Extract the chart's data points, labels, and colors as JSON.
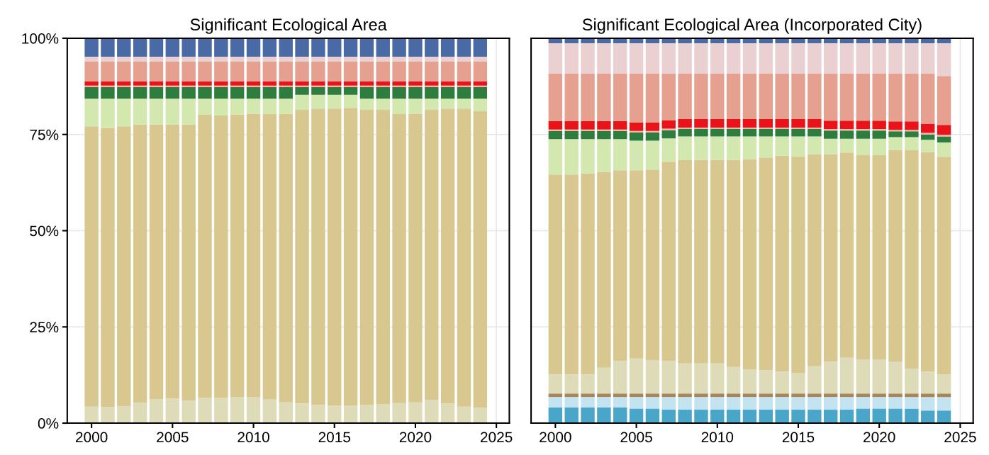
{
  "chart_data": [
    {
      "type": "bar",
      "title": "Significant Ecological Area",
      "stacked": true,
      "x": [
        2000,
        2001,
        2002,
        2003,
        2004,
        2005,
        2006,
        2007,
        2008,
        2009,
        2010,
        2011,
        2012,
        2013,
        2014,
        2015,
        2016,
        2017,
        2018,
        2019,
        2020,
        2021,
        2022,
        2023,
        2024
      ],
      "xlim": [
        1998.5,
        2025.8
      ],
      "xticks": [
        2000,
        2005,
        2010,
        2015,
        2020,
        2025
      ],
      "ylim": [
        0,
        100
      ],
      "yticks": [
        {
          "value": 0,
          "label": "0%"
        },
        {
          "value": 25,
          "label": "25%"
        },
        {
          "value": 50,
          "label": "50%"
        },
        {
          "value": 75,
          "label": "75%"
        },
        {
          "value": 100,
          "label": "100%"
        }
      ],
      "grid": true,
      "series": [
        {
          "color": "#dedbb8",
          "values": [
            4.3,
            4.2,
            4.4,
            5.3,
            6.2,
            6.4,
            5.9,
            6.6,
            6.6,
            6.8,
            6.8,
            6.2,
            5.4,
            5.1,
            4.7,
            4.5,
            4.6,
            4.8,
            4.9,
            5.2,
            5.4,
            6.0,
            5.1,
            4.3,
            4.0
          ]
        },
        {
          "color": "#d9c790",
          "values": [
            72.8,
            72.5,
            72.7,
            72.3,
            71.4,
            71.2,
            71.7,
            73.5,
            73.3,
            73.4,
            73.6,
            74.1,
            75.0,
            76.3,
            77.0,
            77.2,
            77.3,
            76.6,
            76.5,
            75.1,
            75.0,
            75.4,
            76.6,
            77.4,
            77.0
          ]
        },
        {
          "color": "#d3e8ae",
          "values": [
            7.2,
            7.6,
            7.2,
            6.7,
            6.7,
            6.7,
            6.7,
            4.2,
            4.4,
            4.1,
            3.9,
            4.0,
            3.9,
            3.9,
            3.6,
            3.6,
            3.4,
            2.9,
            2.9,
            4.0,
            3.9,
            2.9,
            2.6,
            2.6,
            3.3
          ]
        },
        {
          "color": "#2e7d3e",
          "values": [
            3.0,
            3.0,
            3.0,
            3.0,
            3.0,
            3.0,
            3.0,
            3.0,
            3.0,
            3.0,
            3.0,
            3.0,
            3.0,
            2.0,
            2.0,
            2.0,
            2.0,
            3.0,
            3.0,
            3.0,
            3.0,
            3.0,
            3.0,
            3.0,
            3.0
          ]
        },
        {
          "color": "#f0b8a8",
          "values": [
            0.4,
            0.4,
            0.4,
            0.4,
            0.4,
            0.4,
            0.4,
            0.4,
            0.4,
            0.4,
            0.4,
            0.4,
            0.4,
            0.4,
            0.4,
            0.4,
            0.4,
            0.4,
            0.4,
            0.4,
            0.4,
            0.4,
            0.4,
            0.4,
            0.4
          ]
        },
        {
          "color": "#e8141a",
          "values": [
            1.1,
            1.1,
            1.1,
            1.1,
            1.1,
            1.1,
            1.1,
            1.1,
            1.1,
            1.1,
            1.1,
            1.1,
            1.1,
            1.1,
            1.1,
            1.1,
            1.1,
            1.1,
            1.1,
            1.1,
            1.1,
            1.1,
            1.1,
            1.1,
            1.1
          ]
        },
        {
          "color": "#e5a090",
          "values": [
            5.1,
            5.1,
            5.1,
            5.1,
            5.1,
            5.1,
            5.1,
            5.1,
            5.1,
            5.1,
            5.1,
            5.1,
            5.1,
            5.1,
            5.1,
            5.1,
            5.1,
            5.1,
            5.1,
            5.1,
            5.1,
            5.1,
            5.1,
            5.1,
            5.1
          ]
        },
        {
          "color": "#ead0d0",
          "values": [
            1.3,
            1.3,
            1.3,
            1.3,
            1.3,
            1.3,
            1.3,
            1.3,
            1.3,
            1.3,
            1.3,
            1.3,
            1.3,
            1.3,
            1.3,
            1.3,
            1.3,
            1.3,
            1.3,
            1.3,
            1.3,
            1.3,
            1.3,
            1.3,
            1.3
          ]
        },
        {
          "color": "#4a6aa5",
          "values": [
            4.8,
            4.8,
            4.8,
            4.8,
            4.8,
            4.8,
            4.8,
            4.8,
            4.8,
            4.8,
            4.8,
            4.8,
            4.8,
            4.8,
            4.8,
            4.8,
            4.8,
            4.8,
            4.8,
            4.8,
            4.8,
            4.8,
            4.8,
            4.8,
            4.8
          ]
        }
      ]
    },
    {
      "type": "bar",
      "title": "Significant Ecological Area (Incorporated City)",
      "stacked": true,
      "tick_labels": "x",
      "x": [
        2000,
        2001,
        2002,
        2003,
        2004,
        2005,
        2006,
        2007,
        2008,
        2009,
        2010,
        2011,
        2012,
        2013,
        2014,
        2015,
        2016,
        2017,
        2018,
        2019,
        2020,
        2021,
        2022,
        2023,
        2024
      ],
      "xlim": [
        1998.5,
        2025.8
      ],
      "xticks": [
        2000,
        2005,
        2010,
        2015,
        2020,
        2025
      ],
      "ylim": [
        0,
        100
      ],
      "yticks": [
        0,
        25,
        50,
        75,
        100
      ],
      "grid": true,
      "series": [
        {
          "color": "#4aa6c8",
          "values": [
            4.1,
            4.1,
            4.1,
            4.1,
            4.1,
            3.8,
            3.8,
            3.5,
            3.5,
            3.5,
            3.5,
            3.5,
            3.5,
            3.5,
            3.5,
            3.5,
            3.5,
            3.5,
            3.5,
            3.8,
            3.8,
            3.8,
            3.8,
            3.3,
            3.3
          ]
        },
        {
          "color": "#c4e3f0",
          "values": [
            2.7,
            2.7,
            2.7,
            2.7,
            2.7,
            3.0,
            3.0,
            3.3,
            3.3,
            3.3,
            3.3,
            3.3,
            3.3,
            3.3,
            3.3,
            3.3,
            3.3,
            3.3,
            3.3,
            3.0,
            3.0,
            3.0,
            3.0,
            3.5,
            3.5
          ]
        },
        {
          "color": "#a8865a",
          "values": [
            0.9,
            0.9,
            0.9,
            0.9,
            0.9,
            0.9,
            0.9,
            0.9,
            0.9,
            0.9,
            0.9,
            0.9,
            0.9,
            0.9,
            0.9,
            0.9,
            0.9,
            0.9,
            0.9,
            0.9,
            0.9,
            0.9,
            0.9,
            0.9,
            0.9
          ]
        },
        {
          "color": "#dedbb8",
          "values": [
            5.0,
            5.0,
            5.0,
            6.7,
            8.4,
            9.1,
            8.7,
            8.4,
            7.8,
            7.8,
            7.8,
            6.9,
            6.3,
            6.1,
            5.7,
            5.4,
            7.1,
            8.3,
            9.3,
            8.9,
            8.9,
            8.2,
            6.5,
            5.7,
            5.0
          ]
        },
        {
          "color": "#d9c790",
          "values": [
            51.9,
            51.9,
            52.2,
            50.9,
            49.6,
            48.9,
            49.5,
            51.8,
            52.8,
            52.9,
            52.9,
            53.8,
            54.6,
            55.2,
            56.1,
            56.2,
            55.1,
            53.9,
            53.3,
            53.0,
            53.0,
            55.1,
            56.7,
            57.0,
            56.5
          ]
        },
        {
          "color": "#d3e8ae",
          "values": [
            9.2,
            9.2,
            8.9,
            8.5,
            8.1,
            7.7,
            7.5,
            6.1,
            6.2,
            6.1,
            6.1,
            6.1,
            5.9,
            5.5,
            5.0,
            5.2,
            4.6,
            4.0,
            3.6,
            4.3,
            4.3,
            3.3,
            3.4,
            3.2,
            3.7
          ]
        },
        {
          "color": "#2e7d3e",
          "values": [
            2.1,
            2.1,
            2.1,
            2.1,
            2.1,
            2.1,
            2.1,
            2.1,
            1.9,
            1.9,
            1.9,
            1.9,
            1.9,
            1.9,
            1.9,
            1.9,
            1.9,
            2.1,
            2.1,
            2.1,
            2.1,
            1.5,
            1.5,
            1.4,
            1.6
          ]
        },
        {
          "color": "#f0b8a8",
          "values": [
            0.4,
            0.4,
            0.4,
            0.4,
            0.4,
            0.4,
            0.4,
            0.4,
            0.4,
            0.4,
            0.4,
            0.4,
            0.4,
            0.4,
            0.4,
            0.4,
            0.4,
            0.4,
            0.4,
            0.4,
            0.4,
            0.4,
            0.4,
            0.4,
            0.4
          ]
        },
        {
          "color": "#e8141a",
          "values": [
            2.2,
            2.2,
            2.2,
            2.2,
            2.2,
            2.2,
            2.2,
            2.2,
            2.2,
            2.2,
            2.2,
            2.2,
            2.2,
            2.2,
            2.2,
            2.2,
            2.2,
            2.2,
            2.2,
            2.2,
            2.2,
            2.2,
            2.2,
            2.4,
            2.6
          ]
        },
        {
          "color": "#e5a090",
          "values": [
            12.3,
            12.3,
            12.3,
            12.3,
            12.3,
            12.7,
            12.7,
            12.1,
            11.8,
            11.8,
            11.8,
            11.8,
            11.8,
            11.8,
            11.8,
            11.8,
            11.8,
            12.2,
            12.2,
            12.2,
            12.2,
            12.4,
            12.4,
            13.0,
            12.7
          ]
        },
        {
          "color": "#ead0d0",
          "values": [
            7.9,
            7.9,
            7.9,
            7.9,
            7.9,
            7.9,
            7.9,
            7.9,
            7.9,
            7.9,
            7.9,
            7.9,
            7.9,
            7.9,
            7.9,
            7.9,
            7.9,
            7.9,
            7.9,
            7.9,
            7.9,
            7.9,
            7.9,
            7.9,
            8.5
          ]
        },
        {
          "color": "#4a6aa5",
          "values": [
            1.3,
            1.3,
            1.3,
            1.3,
            1.3,
            1.3,
            1.3,
            1.3,
            1.3,
            1.3,
            1.3,
            1.3,
            1.3,
            1.3,
            1.3,
            1.3,
            1.3,
            1.3,
            1.3,
            1.3,
            1.3,
            1.3,
            1.3,
            1.3,
            1.3
          ]
        }
      ]
    }
  ]
}
